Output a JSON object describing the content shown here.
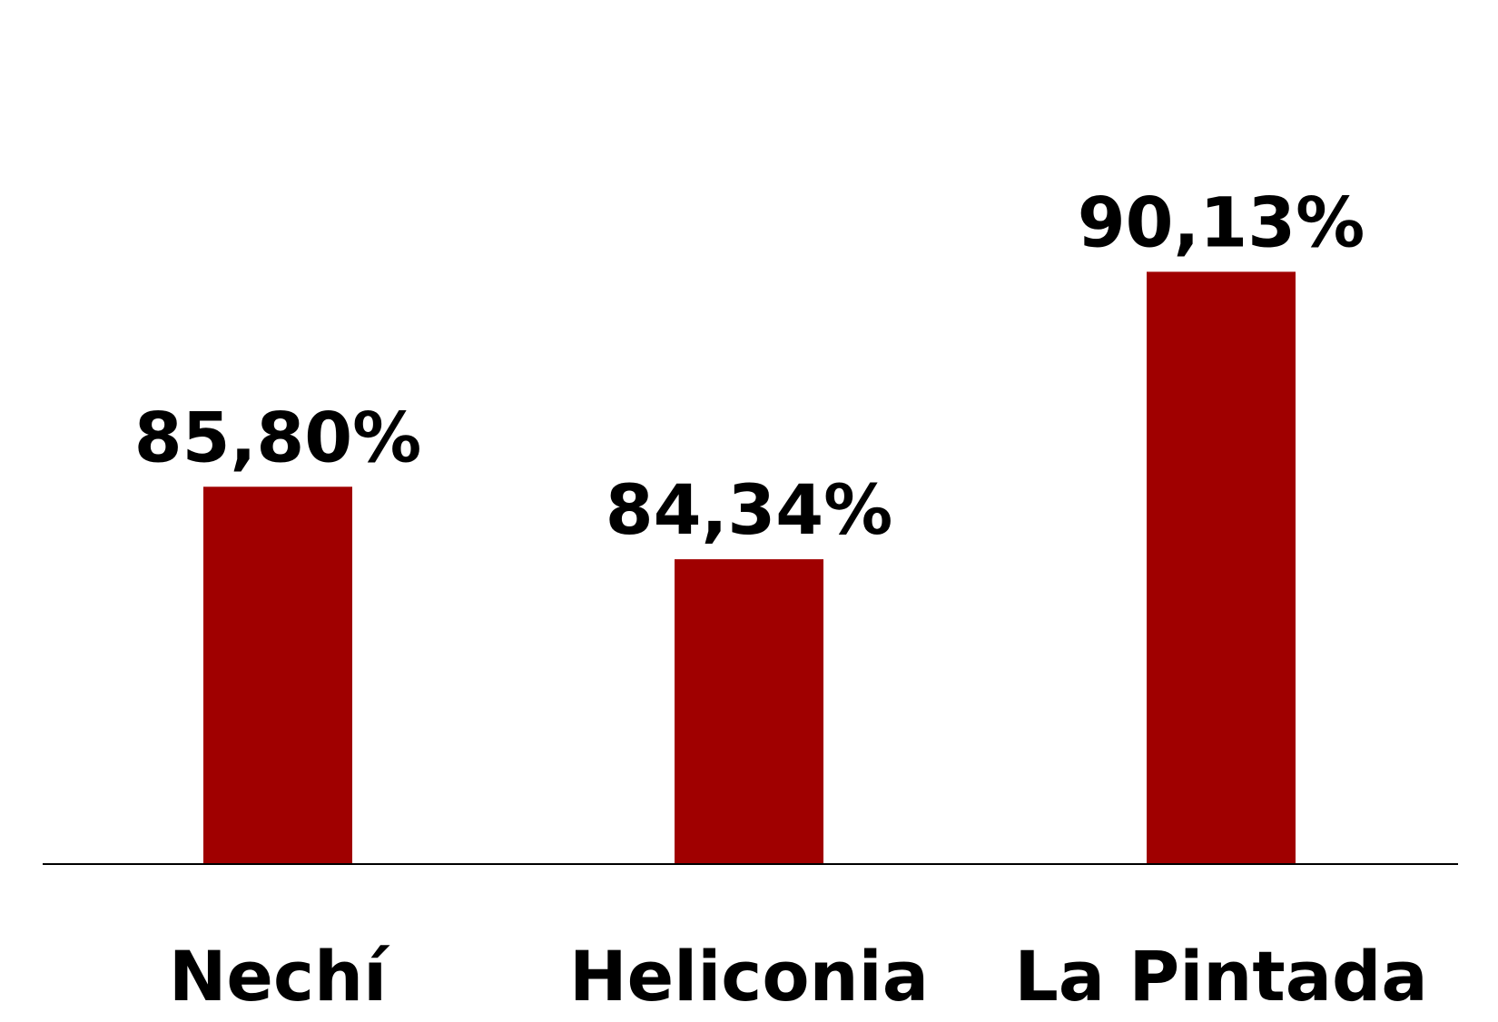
{
  "chart_data": {
    "type": "bar",
    "categories": [
      "Nechí",
      "Heliconia",
      "La Pintada"
    ],
    "values": [
      85.8,
      84.34,
      90.13
    ],
    "value_labels": [
      "85,80%",
      "84,34%",
      "90,13%"
    ],
    "title": "",
    "xlabel": "",
    "ylabel": "",
    "grid": false,
    "legend": "none",
    "colors": {
      "bar": "#a00000",
      "axis": "#000000",
      "text": "#000000"
    }
  }
}
